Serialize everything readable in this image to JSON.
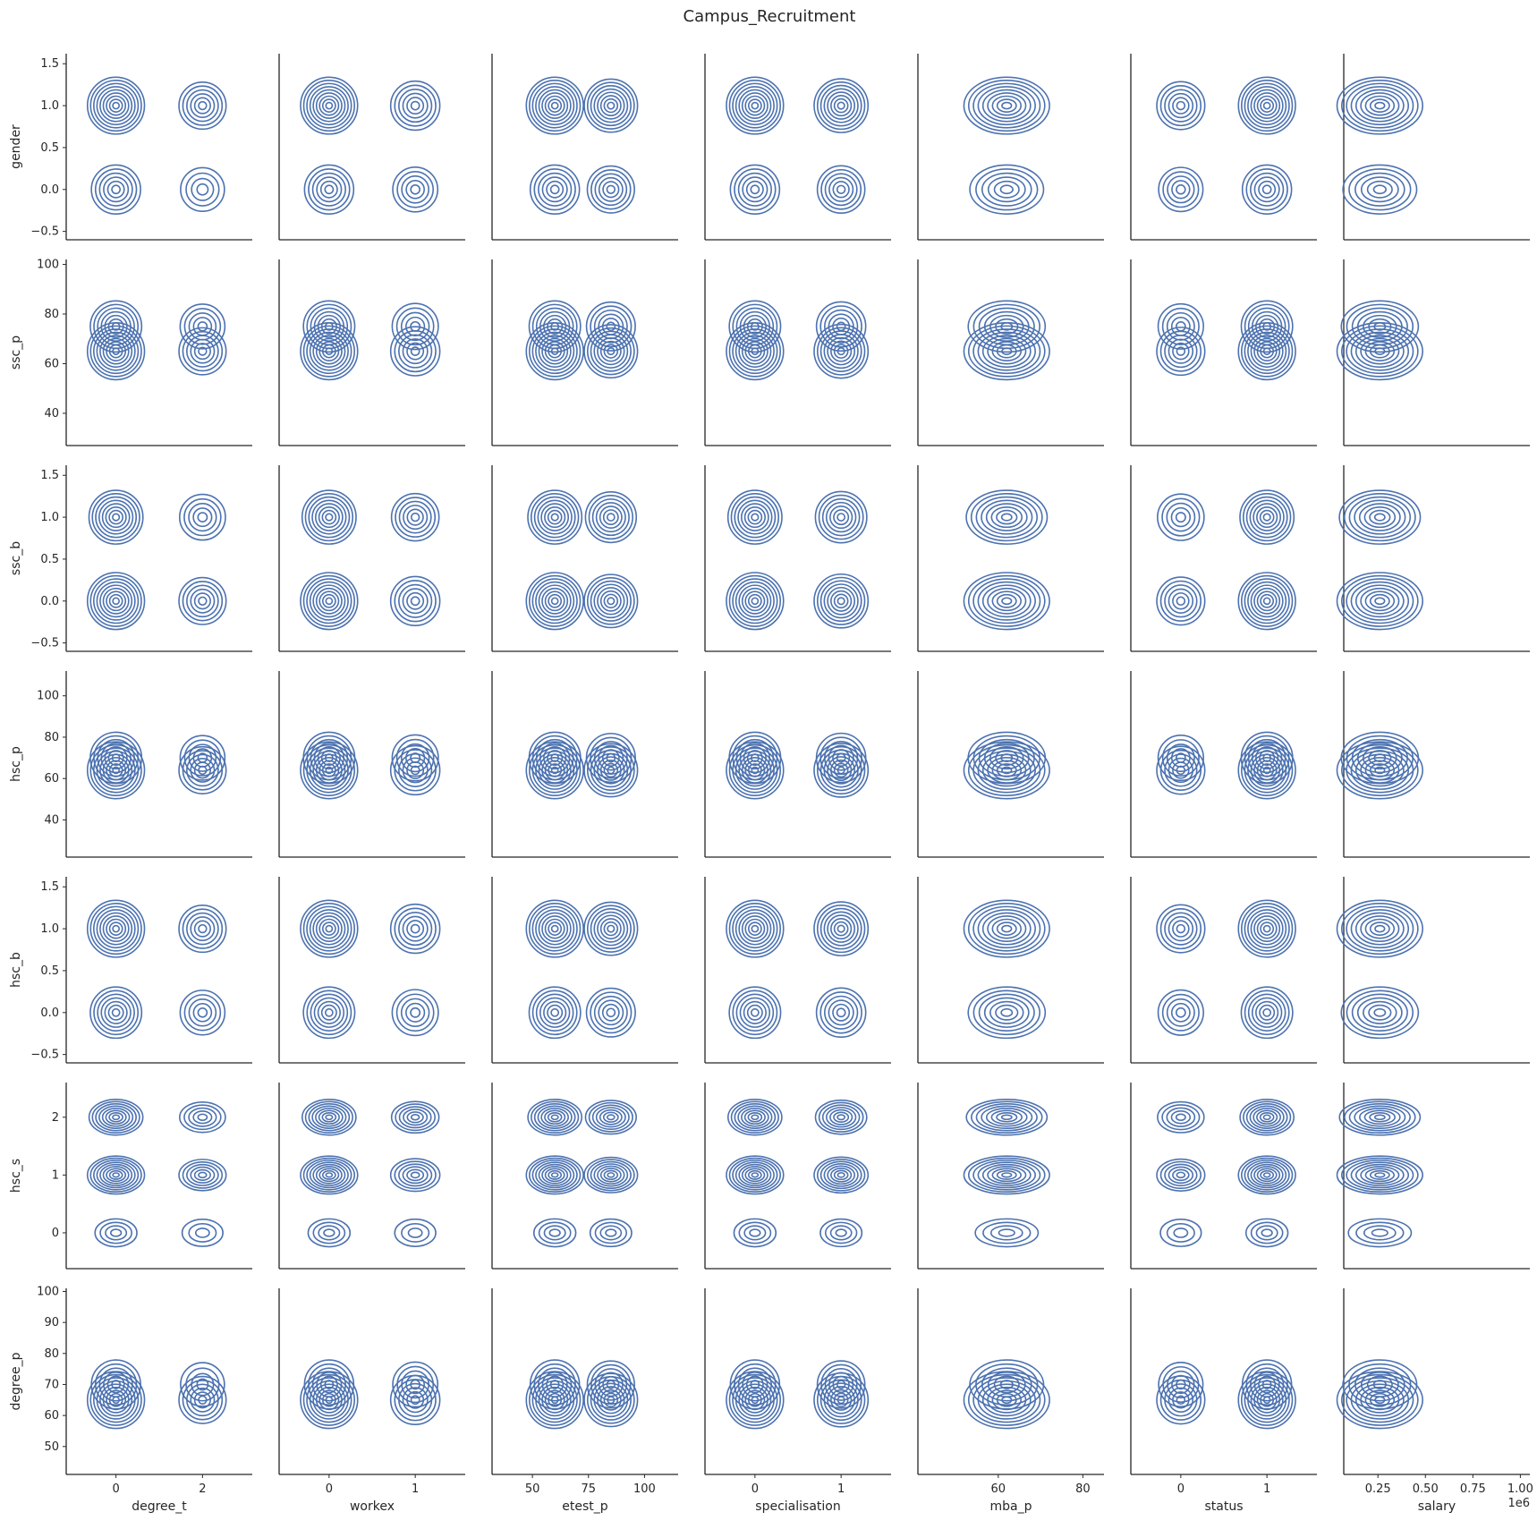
{
  "chart_data": {
    "type": "contour-grid",
    "title": "Campus_Recruitment",
    "line_color": "#4c72b0",
    "x_variables": [
      {
        "label": "degree_t",
        "ticks": [
          0,
          2
        ],
        "tick_labels": [
          "0",
          "2"
        ],
        "range": [
          -1.15,
          3.15
        ]
      },
      {
        "label": "workex",
        "ticks": [
          0,
          1
        ],
        "tick_labels": [
          "0",
          "1"
        ],
        "range": [
          -0.58,
          1.58
        ]
      },
      {
        "label": "etest_p",
        "ticks": [
          50,
          75,
          100
        ],
        "tick_labels": [
          "50",
          "75",
          "100"
        ],
        "range": [
          32,
          115
        ]
      },
      {
        "label": "specialisation",
        "ticks": [
          0,
          1
        ],
        "tick_labels": [
          "0",
          "1"
        ],
        "range": [
          -0.58,
          1.58
        ]
      },
      {
        "label": "mba_p",
        "ticks": [
          60,
          80
        ],
        "tick_labels": [
          "60",
          "80"
        ],
        "range": [
          41,
          85
        ]
      },
      {
        "label": "status",
        "ticks": [
          0,
          1
        ],
        "tick_labels": [
          "0",
          "1"
        ],
        "range": [
          -0.58,
          1.58
        ]
      },
      {
        "label": "salary",
        "ticks": [
          0.25,
          0.5,
          0.75,
          1.0
        ],
        "tick_labels": [
          "0.25",
          "0.50",
          "0.75",
          "1.00"
        ],
        "range": [
          0.07,
          1.05
        ],
        "offset_text": "1e6"
      }
    ],
    "y_variables": [
      {
        "label": "gender",
        "ticks": [
          -0.5,
          0.0,
          0.5,
          1.0,
          1.5
        ],
        "tick_labels": [
          "−0.5",
          "0.0",
          "0.5",
          "1.0",
          "1.5"
        ],
        "range": [
          -0.6,
          1.62
        ]
      },
      {
        "label": "ssc_p",
        "ticks": [
          40,
          60,
          80,
          100
        ],
        "tick_labels": [
          "40",
          "60",
          "80",
          "100"
        ],
        "range": [
          27,
          102
        ]
      },
      {
        "label": "ssc_b",
        "ticks": [
          -0.5,
          0.0,
          0.5,
          1.0,
          1.5
        ],
        "tick_labels": [
          "−0.5",
          "0.0",
          "0.5",
          "1.0",
          "1.5"
        ],
        "range": [
          -0.6,
          1.62
        ]
      },
      {
        "label": "hsc_p",
        "ticks": [
          40,
          60,
          80,
          100
        ],
        "tick_labels": [
          "40",
          "60",
          "80",
          "100"
        ],
        "range": [
          22,
          112
        ]
      },
      {
        "label": "hsc_b",
        "ticks": [
          -0.5,
          0.0,
          0.5,
          1.0,
          1.5
        ],
        "tick_labels": [
          "−0.5",
          "0.0",
          "0.5",
          "1.0",
          "1.5"
        ],
        "range": [
          -0.6,
          1.62
        ]
      },
      {
        "label": "hsc_s",
        "ticks": [
          0,
          1,
          2
        ],
        "tick_labels": [
          "0",
          "1",
          "2"
        ],
        "range": [
          -0.62,
          2.6
        ]
      },
      {
        "label": "degree_p",
        "ticks": [
          50,
          60,
          70,
          80,
          90,
          100
        ],
        "tick_labels": [
          "50",
          "60",
          "70",
          "80",
          "90",
          "100"
        ],
        "range": [
          41,
          101
        ]
      }
    ],
    "grid": false,
    "kernel_density_estimates": {
      "description": "Each panel is a bivariate KDE contour plot of y_variables[row] vs x_variables[col]; approximate density peaks (x, y, relative weight)",
      "row_modes": {
        "gender": [
          [
            1,
            0.65
          ],
          [
            0,
            0.35
          ]
        ],
        "ssc_p": [
          [
            65,
            0.6
          ],
          [
            75,
            0.4
          ]
        ],
        "ssc_b": [
          [
            0,
            0.55
          ],
          [
            1,
            0.45
          ]
        ],
        "hsc_p": [
          [
            64,
            0.6
          ],
          [
            70,
            0.4
          ]
        ],
        "hsc_b": [
          [
            1,
            0.6
          ],
          [
            0,
            0.4
          ]
        ],
        "hsc_s": [
          [
            1,
            0.52
          ],
          [
            2,
            0.42
          ],
          [
            0,
            0.06
          ]
        ],
        "degree_p": [
          [
            65,
            0.65
          ],
          [
            70,
            0.35
          ]
        ]
      },
      "col_modes": {
        "degree_t": [
          [
            0,
            0.67
          ],
          [
            2,
            0.28
          ]
        ],
        "workex": [
          [
            0,
            0.65
          ],
          [
            1,
            0.35
          ]
        ],
        "etest_p": [
          [
            60,
            0.45
          ],
          [
            85,
            0.35
          ]
        ],
        "specialisation": [
          [
            0,
            0.55
          ],
          [
            1,
            0.45
          ]
        ],
        "mba_p": [
          [
            62,
            1.0
          ]
        ],
        "status": [
          [
            1,
            0.68
          ],
          [
            0,
            0.32
          ]
        ],
        "salary": [
          [
            0.26,
            1.0
          ]
        ]
      }
    }
  }
}
